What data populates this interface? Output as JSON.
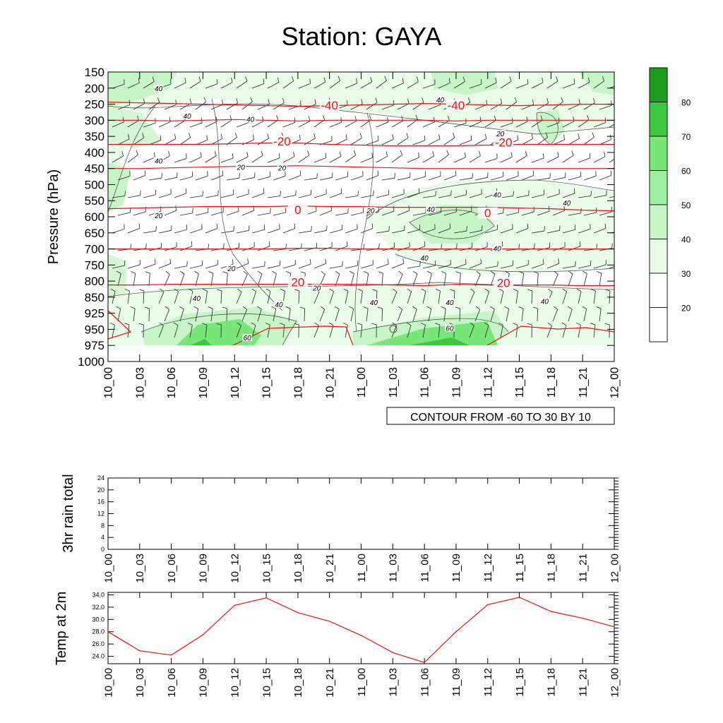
{
  "page_title": "Station: GAYA",
  "time_labels": [
    "10_00",
    "10_03",
    "10_06",
    "10_09",
    "10_12",
    "10_15",
    "10_18",
    "10_21",
    "11_00",
    "11_03",
    "11_06",
    "11_09",
    "11_12",
    "11_15",
    "11_18",
    "11_21",
    "12_00"
  ],
  "chart_data": [
    {
      "id": "cross-section",
      "type": "heatmap",
      "ylabel": "Pressure (hPa)",
      "y_ticks": [
        150,
        200,
        250,
        300,
        350,
        400,
        450,
        500,
        550,
        600,
        650,
        700,
        750,
        800,
        850,
        925,
        950,
        975,
        1000
      ],
      "y_reversed": true,
      "contour_info": "CONTOUR FROM -60 TO 30 BY 10",
      "colorbar": {
        "levels": [
          20,
          30,
          40,
          50,
          60,
          70,
          80
        ],
        "labels": [
          "20",
          "30",
          "40",
          "50",
          "60",
          "70",
          "80"
        ],
        "colors": [
          "#ffffff",
          "#ffffff",
          "#e6fae6",
          "#c8f5c8",
          "#a0eea0",
          "#78e678",
          "#3cc83c",
          "#1e9e1e"
        ]
      },
      "temperature_contours": [
        {
          "label": "-40",
          "pressure": 250
        },
        {
          "label": "-40",
          "pressure": 300
        },
        {
          "label": "-20",
          "pressure": 375
        },
        {
          "label": "-20",
          "pressure": 450
        },
        {
          "label": "0",
          "pressure": 575
        },
        {
          "label": "0",
          "pressure": 700
        },
        {
          "label": "20",
          "pressure": 812
        },
        {
          "label": "20",
          "pressure": 950
        }
      ],
      "contour_labels": [
        {
          "text": "-40",
          "time": 7,
          "pressure": 260
        },
        {
          "text": "-40",
          "time": 11,
          "pressure": 260
        },
        {
          "text": "-20",
          "time": 5.5,
          "pressure": 372
        },
        {
          "text": "-20",
          "time": 12.5,
          "pressure": 375
        },
        {
          "text": "0",
          "time": 6,
          "pressure": 585
        },
        {
          "text": "0",
          "time": 12,
          "pressure": 595
        },
        {
          "text": "20",
          "time": 6,
          "pressure": 810
        },
        {
          "text": "20",
          "time": 12.5,
          "pressure": 812
        }
      ],
      "humidity_labels": [
        {
          "text": "40",
          "time": 1.6,
          "pressure": 205
        },
        {
          "text": "40",
          "time": 2.5,
          "pressure": 290
        },
        {
          "text": "40",
          "time": 4.5,
          "pressure": 300
        },
        {
          "text": "40",
          "time": 1.6,
          "pressure": 430
        },
        {
          "text": "20",
          "time": 4.2,
          "pressure": 450
        },
        {
          "text": "20",
          "time": 5.5,
          "pressure": 452
        },
        {
          "text": "40",
          "time": 10.5,
          "pressure": 240
        },
        {
          "text": "20",
          "time": 12.4,
          "pressure": 345
        },
        {
          "text": "20",
          "time": 1.6,
          "pressure": 600
        },
        {
          "text": "20",
          "time": 8.3,
          "pressure": 585
        },
        {
          "text": "40",
          "time": 10.2,
          "pressure": 580
        },
        {
          "text": "40",
          "time": 12.3,
          "pressure": 535
        },
        {
          "text": "40",
          "time": 14.5,
          "pressure": 560
        },
        {
          "text": "40",
          "time": 12.3,
          "pressure": 702
        },
        {
          "text": "40",
          "time": 10.0,
          "pressure": 732
        },
        {
          "text": "20",
          "time": 3.9,
          "pressure": 765
        },
        {
          "text": "20",
          "time": 6.6,
          "pressure": 825
        },
        {
          "text": "40",
          "time": 2.8,
          "pressure": 860
        },
        {
          "text": "40",
          "time": 5.4,
          "pressure": 890
        },
        {
          "text": "40",
          "time": 8.4,
          "pressure": 880
        },
        {
          "text": "40",
          "time": 10.8,
          "pressure": 880
        },
        {
          "text": "40",
          "time": 13.8,
          "pressure": 875
        },
        {
          "text": "60",
          "time": 4.4,
          "pressure": 965
        },
        {
          "text": "60",
          "time": 10.8,
          "pressure": 950
        }
      ]
    },
    {
      "id": "rain",
      "type": "line",
      "ylabel": "3hr rain total",
      "y_ticks": [
        0,
        4,
        8,
        12,
        16,
        20,
        24
      ],
      "ylim": [
        0,
        24
      ],
      "x_index": [
        0,
        1,
        2,
        3,
        4,
        5,
        6,
        7,
        8,
        9,
        10,
        11,
        12,
        13,
        14,
        15,
        16
      ],
      "values": []
    },
    {
      "id": "temp",
      "type": "line",
      "ylabel": "Temp at 2m",
      "y_ticks": [
        "24.0",
        "26.0",
        "28.0",
        "30.0",
        "32.0",
        "34.0"
      ],
      "ylim": [
        22.8,
        34.4
      ],
      "x_index": [
        0,
        1,
        2,
        3,
        4,
        5,
        6,
        7,
        8,
        9,
        10,
        11,
        12,
        13,
        14,
        15,
        16
      ],
      "values": [
        28.0,
        24.9,
        24.2,
        27.5,
        32.3,
        33.5,
        31.1,
        29.7,
        27.4,
        24.6,
        23.0,
        28.0,
        32.4,
        33.6,
        31.3,
        30.2,
        28.8
      ],
      "color": "#ee1111"
    }
  ]
}
